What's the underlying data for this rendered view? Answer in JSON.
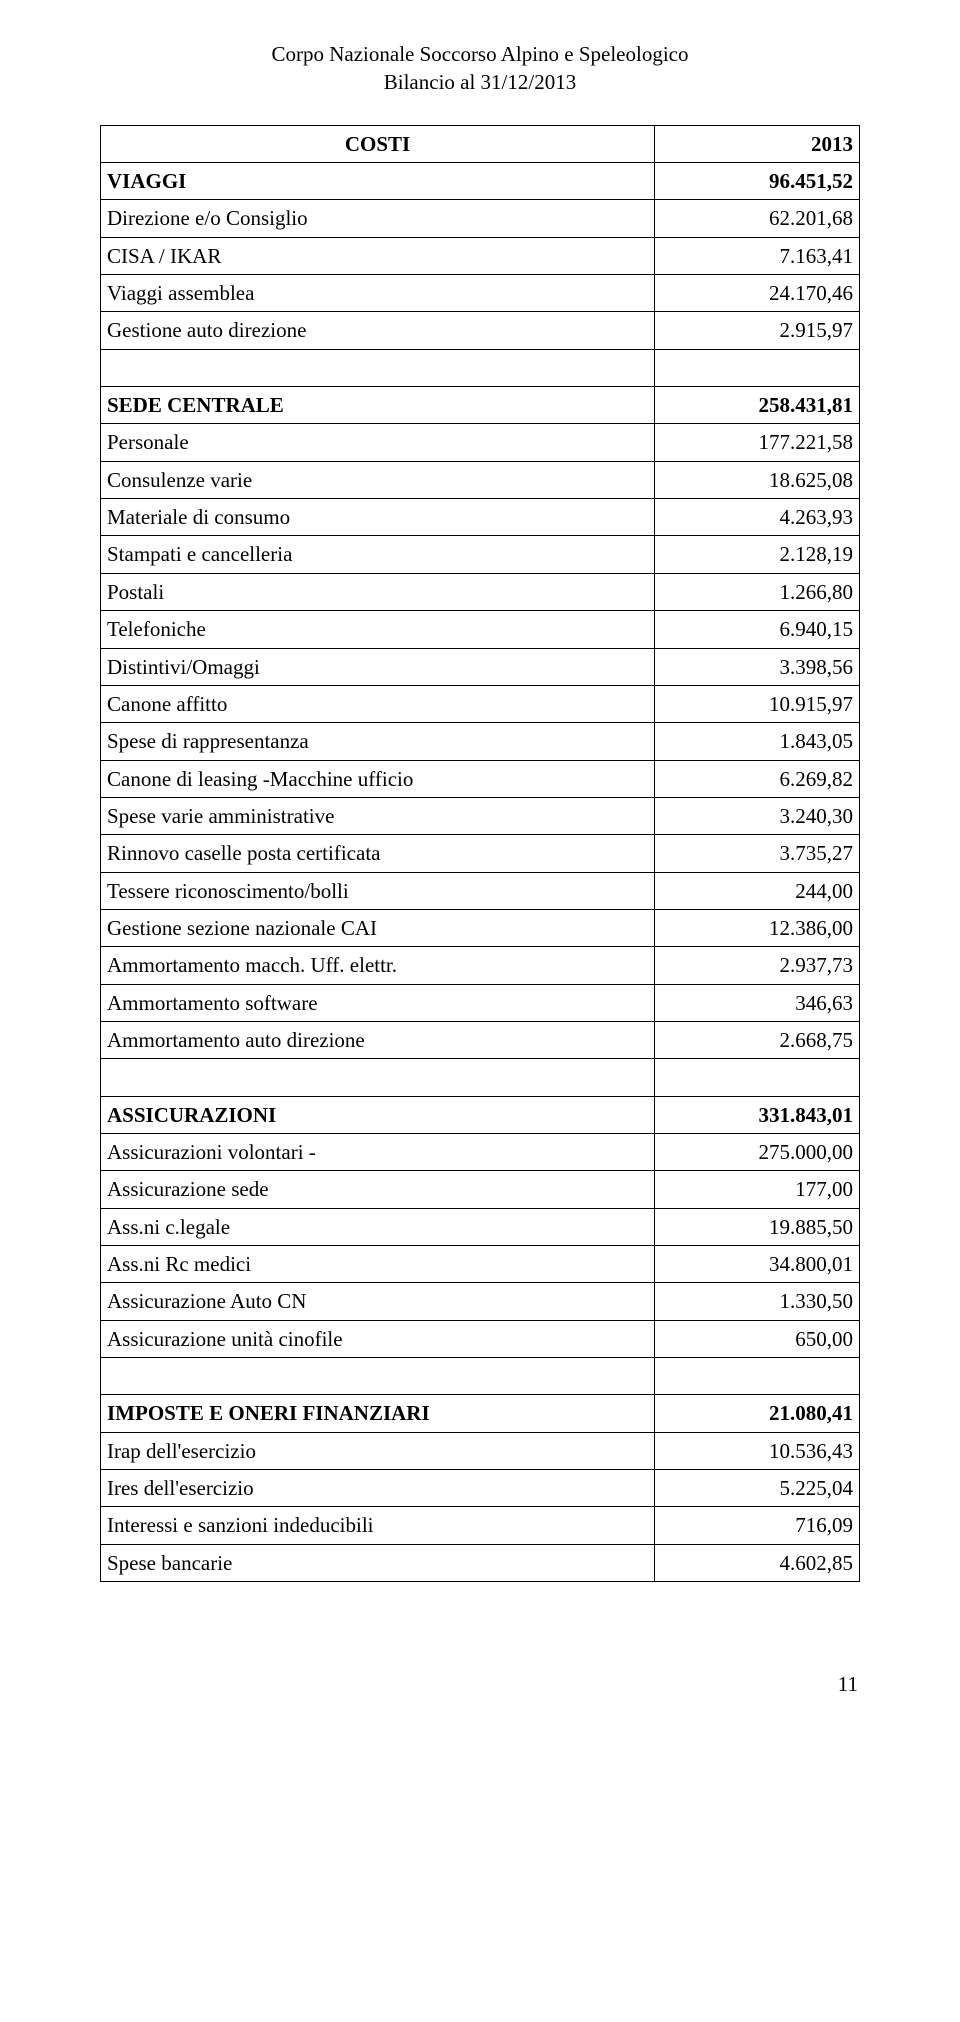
{
  "header": {
    "line1": "Corpo Nazionale Soccorso Alpino e Speleologico",
    "line2": "Bilancio al 31/12/2013"
  },
  "tableHeader": {
    "col1": "COSTI",
    "col2": "2013"
  },
  "sections": [
    {
      "title": {
        "label": "VIAGGI",
        "value": "96.451,52"
      },
      "rows": [
        {
          "label": "Direzione e/o Consiglio",
          "value": "62.201,68"
        },
        {
          "label": "CISA / IKAR",
          "value": "7.163,41"
        },
        {
          "label": "Viaggi assemblea",
          "value": "24.170,46"
        },
        {
          "label": "Gestione auto direzione",
          "value": "2.915,97"
        }
      ]
    },
    {
      "title": {
        "label": "SEDE CENTRALE",
        "value": "258.431,81"
      },
      "rows": [
        {
          "label": "Personale",
          "value": "177.221,58"
        },
        {
          "label": "Consulenze varie",
          "value": "18.625,08"
        },
        {
          "label": "Materiale di consumo",
          "value": "4.263,93"
        },
        {
          "label": "Stampati e cancelleria",
          "value": "2.128,19"
        },
        {
          "label": "Postali",
          "value": "1.266,80"
        },
        {
          "label": "Telefoniche",
          "value": "6.940,15"
        },
        {
          "label": "Distintivi/Omaggi",
          "value": "3.398,56"
        },
        {
          "label": "Canone affitto",
          "value": "10.915,97"
        },
        {
          "label": "Spese di rappresentanza",
          "value": "1.843,05"
        },
        {
          "label": "Canone di leasing -Macchine ufficio",
          "value": "6.269,82"
        },
        {
          "label": "Spese varie amministrative",
          "value": "3.240,30"
        },
        {
          "label": "Rinnovo caselle posta certificata",
          "value": "3.735,27"
        },
        {
          "label": "Tessere riconoscimento/bolli",
          "value": "244,00"
        },
        {
          "label": "Gestione sezione nazionale CAI",
          "value": "12.386,00"
        },
        {
          "label": "Ammortamento macch. Uff. elettr.",
          "value": "2.937,73"
        },
        {
          "label": "Ammortamento software",
          "value": "346,63"
        },
        {
          "label": "Ammortamento auto direzione",
          "value": "2.668,75"
        }
      ]
    },
    {
      "title": {
        "label": "ASSICURAZIONI",
        "value": "331.843,01"
      },
      "rows": [
        {
          "label": "Assicurazioni volontari -",
          "value": "275.000,00"
        },
        {
          "label": "Assicurazione sede",
          "value": "177,00"
        },
        {
          "label": "Ass.ni c.legale",
          "value": "19.885,50"
        },
        {
          "label": "Ass.ni Rc medici",
          "value": "34.800,01"
        },
        {
          "label": "Assicurazione Auto CN",
          "value": "1.330,50"
        },
        {
          "label": "Assicurazione unità cinofile",
          "value": "650,00"
        }
      ]
    },
    {
      "title": {
        "label": "IMPOSTE E ONERI FINANZIARI",
        "value": "21.080,41"
      },
      "rows": [
        {
          "label": "Irap dell'esercizio",
          "value": "10.536,43"
        },
        {
          "label": "Ires dell'esercizio",
          "value": "5.225,04"
        },
        {
          "label": "Interessi e sanzioni indeducibili",
          "value": "716,09"
        },
        {
          "label": "Spese bancarie",
          "value": "4.602,85"
        }
      ]
    }
  ],
  "pageNumber": "11"
}
